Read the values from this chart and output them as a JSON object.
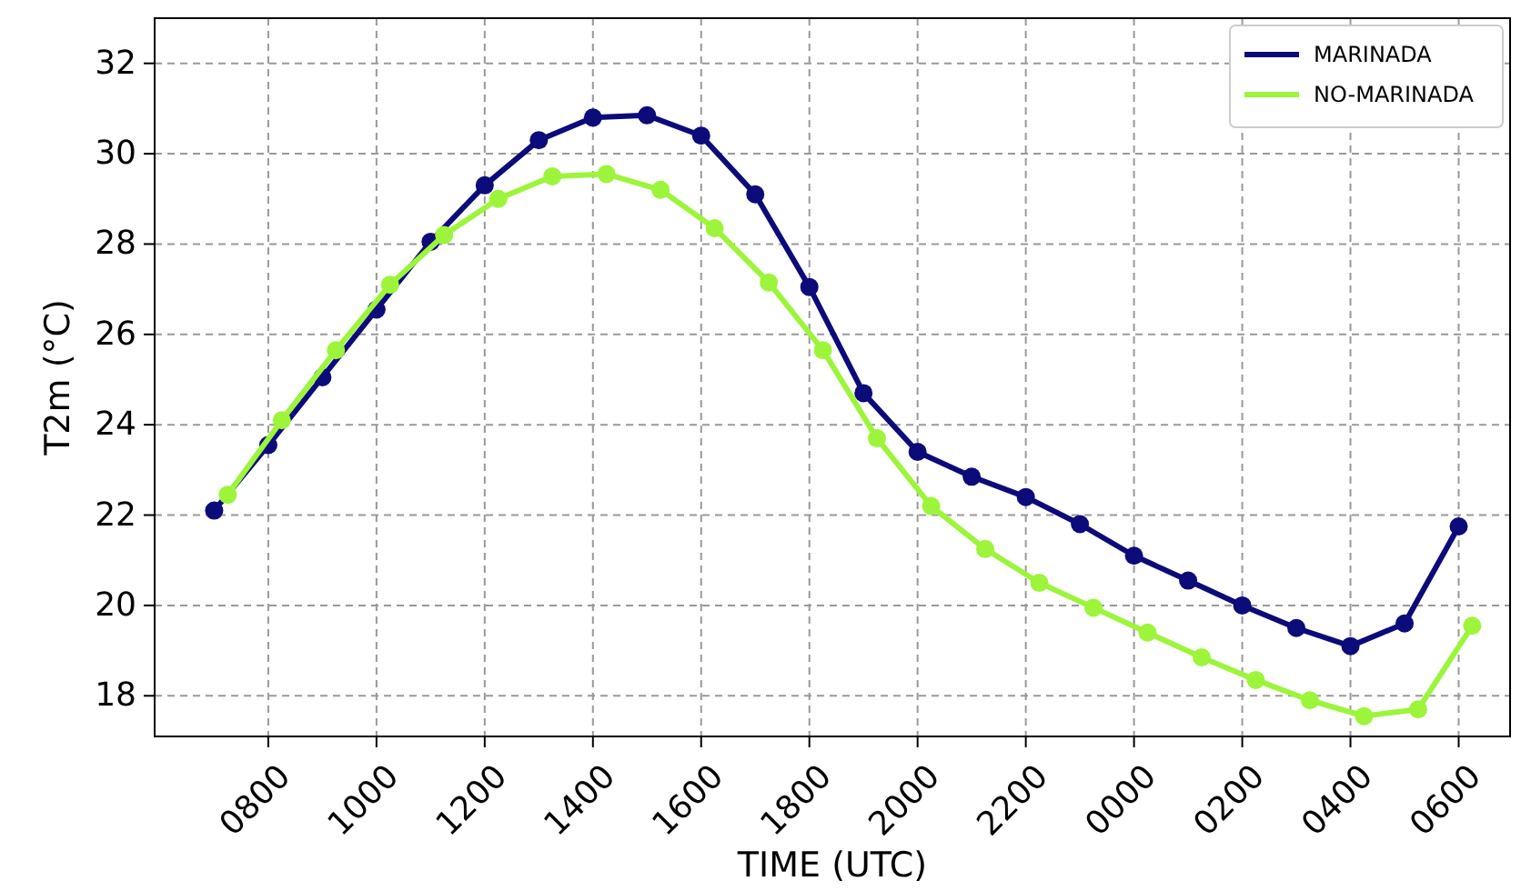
{
  "chart_data": {
    "type": "line",
    "xlabel": "TIME (UTC)",
    "ylabel": "T2m (°C)",
    "categories": [
      null,
      "0800",
      null,
      "1000",
      null,
      "1200",
      null,
      "1400",
      null,
      "1600",
      null,
      "1800",
      null,
      "2000",
      null,
      "2200",
      null,
      "0000",
      null,
      "0200",
      null,
      "0400",
      null,
      "0600"
    ],
    "ylim": [
      17.1,
      33
    ],
    "yticks": [
      18,
      20,
      22,
      24,
      26,
      28,
      30,
      32
    ],
    "grid": true,
    "legend": "top right",
    "marker": "circle",
    "line_style": "solid",
    "series": [
      {
        "name": "MARINADA",
        "color": "#0b0b7a",
        "values": [
          22.1,
          23.55,
          25.05,
          26.55,
          28.05,
          29.3,
          30.3,
          30.8,
          30.85,
          30.4,
          29.1,
          27.05,
          24.7,
          23.4,
          22.85,
          22.4,
          21.8,
          21.1,
          20.55,
          20.0,
          19.5,
          19.1,
          19.6,
          21.75
        ]
      },
      {
        "name": "NO-MARINADA",
        "color": "#9cf53a",
        "values": [
          22.45,
          24.1,
          25.65,
          27.1,
          28.2,
          29.0,
          29.5,
          29.55,
          29.2,
          28.35,
          27.15,
          25.65,
          23.7,
          22.2,
          21.25,
          20.5,
          19.95,
          19.4,
          18.85,
          18.35,
          17.9,
          17.55,
          17.7,
          19.55
        ]
      }
    ]
  }
}
